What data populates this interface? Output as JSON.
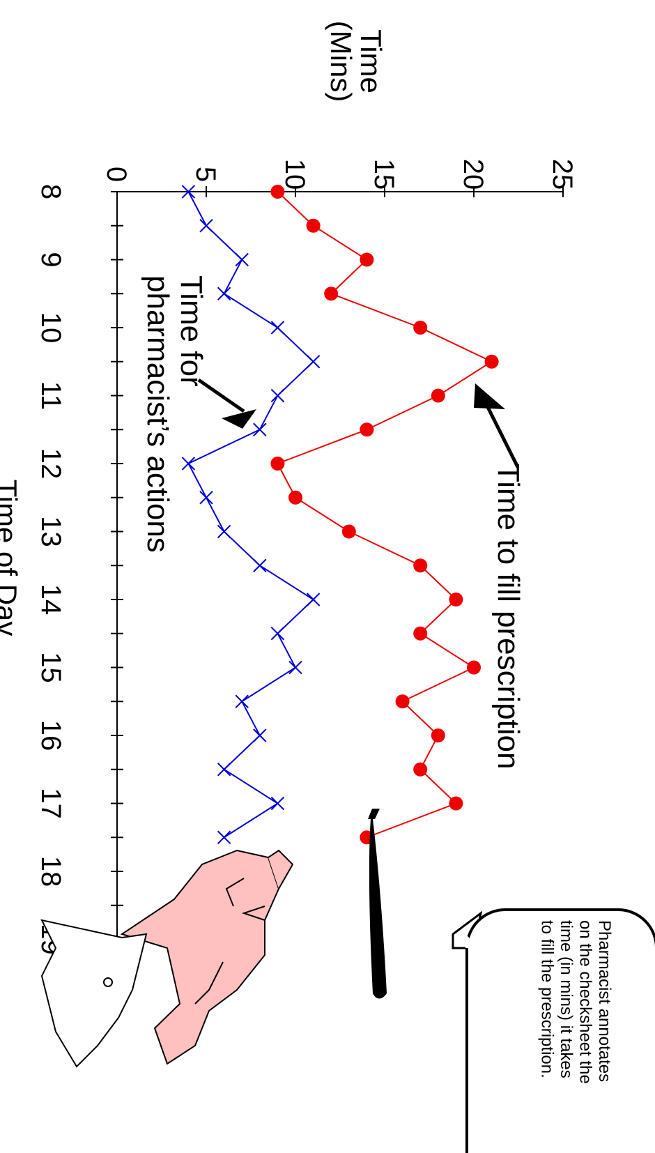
{
  "chart_data": {
    "type": "line",
    "title": "",
    "xlabel": "Time of Day",
    "ylabel_lines": [
      "Time",
      "(Mins)"
    ],
    "x_ticks": [
      8,
      9,
      10,
      11,
      12,
      13,
      14,
      15,
      16,
      17,
      18,
      19
    ],
    "xlim": [
      8,
      19.5
    ],
    "ylim": [
      0,
      25
    ],
    "y_ticks": [
      0,
      5,
      10,
      15,
      20,
      25
    ],
    "x": [
      8,
      8.5,
      9,
      9.5,
      10,
      10.5,
      11,
      11.5,
      12,
      12.5,
      13,
      13.5,
      14,
      14.5,
      15,
      15.5,
      16,
      16.5,
      17,
      17.5
    ],
    "series": [
      {
        "key": "fill",
        "color": "#ee0000",
        "marker": "circle",
        "values": [
          9,
          11,
          14,
          12,
          17,
          21,
          18,
          14,
          9,
          10,
          13,
          17,
          19,
          17,
          20,
          16,
          18,
          17,
          19,
          14
        ]
      },
      {
        "key": "pharmacist",
        "color": "#0000dd",
        "marker": "x",
        "values": [
          4,
          5,
          7,
          6,
          9,
          11,
          9,
          8,
          4,
          5,
          6,
          8,
          11,
          9,
          10,
          7,
          8,
          6,
          9,
          6
        ]
      }
    ],
    "annotations": {
      "fill_label": "Time to fill prescription",
      "pharmacist_label_lines": [
        "Time for",
        "pharmacist’s actions"
      ],
      "callout_lines": [
        "Pharmacist annotates",
        "on the checksheet the",
        "time (in mins) it takes",
        "to fill the prescription."
      ]
    }
  }
}
